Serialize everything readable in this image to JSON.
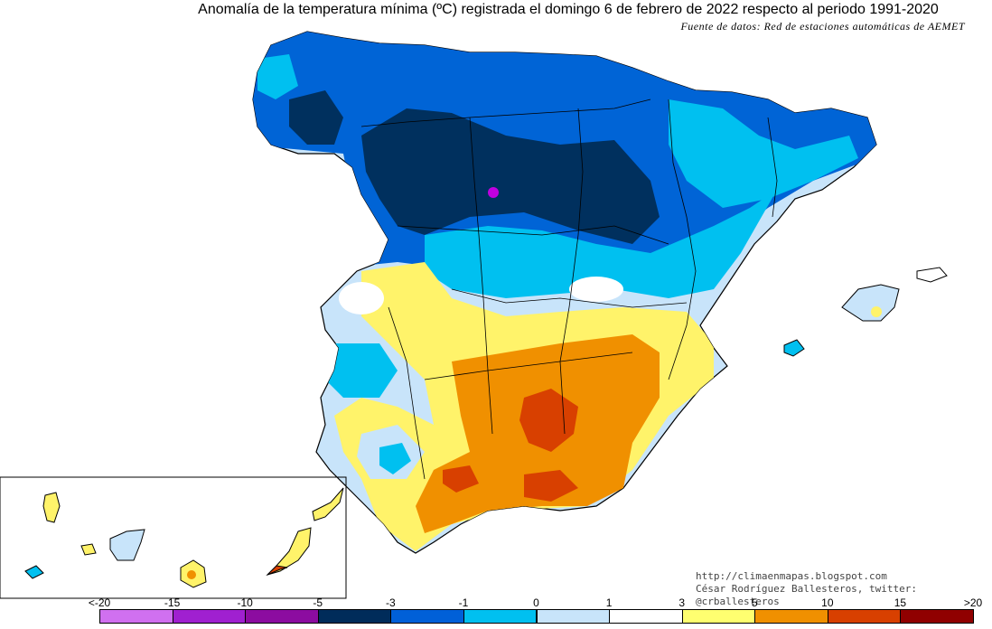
{
  "title": "Anomalía de la temperatura mínima (ºC) registrada el domingo 6 de febrero de 2022 respecto al periodo 1991-2020",
  "source": "Fuente de datos: Red de estaciones automáticas de AEMET",
  "credit": {
    "blog": "http://climaenmapas.blogspot.com",
    "author": "César Rodríguez Ballesteros, twitter: @crballesteros"
  },
  "legend": {
    "ticks": [
      "<-20",
      "-15",
      "-10",
      "-5",
      "-3",
      "-1",
      "0",
      "1",
      "3",
      "5",
      "10",
      "15",
      ">20"
    ],
    "colors": [
      "#d070f0",
      "#a020d0",
      "#8c0ca0",
      "#002c5a",
      "#0060d8",
      "#00c0f0",
      "#c8e4fa",
      "#ffffff",
      "#ffff70",
      "#f09000",
      "#d84000",
      "#900000",
      "#603000"
    ]
  },
  "map_colors": {
    "very_cold": "#00305e",
    "cold": "#0064d6",
    "cool": "#00c0f0",
    "slightly_cool": "#c8e4fa",
    "neutral": "#ffffff",
    "slightly_warm": "#fff36a",
    "warm": "#f09000",
    "hot": "#d84000",
    "extreme_point": "#c000e0"
  }
}
